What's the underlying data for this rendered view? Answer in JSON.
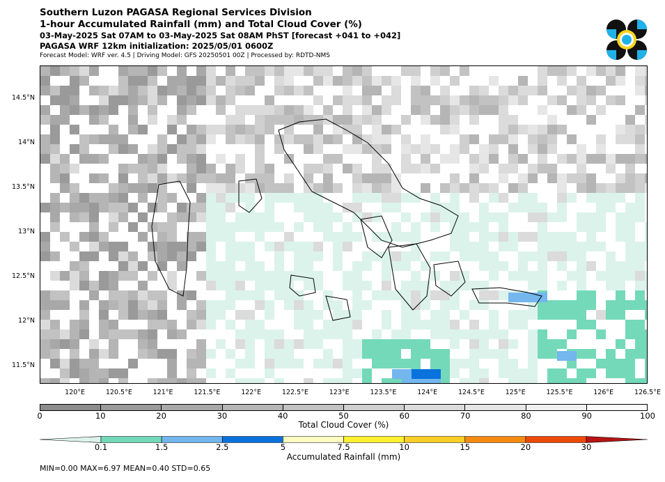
{
  "header": {
    "title1": "Southern Luzon PAGASA Regional Services Division",
    "title2": "1-hour Accumulated Rainfall (mm) and Total Cloud Cover (%)",
    "title3": "03-May-2025 Sat 07AM to 03-May-2025 Sat 08AM PhST [forecast +041 to +042]",
    "title4": "PAGASA WRF 12km initialization: 2025/05/01 0600Z",
    "title5": "Forecast Model: WRF ver. 4.5 | Driving Model: GFS 20250501 00Z | Processed by: RDTD-NMS"
  },
  "logo": {
    "icon": "pagasa-logo-icon",
    "colors": [
      "#111111",
      "#1fb2e8",
      "#f7d51d"
    ]
  },
  "map": {
    "lon_range": [
      119.6,
      126.5
    ],
    "lat_range": [
      11.3,
      14.87
    ],
    "lat_ticks": [
      {
        "v": 14.5,
        "label": "14.5°N"
      },
      {
        "v": 14.0,
        "label": "14°N"
      },
      {
        "v": 13.5,
        "label": "13.5°N"
      },
      {
        "v": 13.0,
        "label": "13°N"
      },
      {
        "v": 12.5,
        "label": "12.5°N"
      },
      {
        "v": 12.0,
        "label": "12°N"
      },
      {
        "v": 11.5,
        "label": "11.5°N"
      }
    ],
    "lon_ticks": [
      {
        "v": 120.0,
        "label": "120°E"
      },
      {
        "v": 120.5,
        "label": "120.5°E"
      },
      {
        "v": 121.0,
        "label": "121°E"
      },
      {
        "v": 121.5,
        "label": "121.5°E"
      },
      {
        "v": 122.0,
        "label": "122°E"
      },
      {
        "v": 122.5,
        "label": "122.5°E"
      },
      {
        "v": 123.0,
        "label": "123°E"
      },
      {
        "v": 123.5,
        "label": "123.5°E"
      },
      {
        "v": 124.0,
        "label": "124°E"
      },
      {
        "v": 124.5,
        "label": "124.5°E"
      },
      {
        "v": 125.0,
        "label": "125°E"
      },
      {
        "v": 125.5,
        "label": "125.5°E"
      },
      {
        "v": 126.0,
        "label": "126°E"
      },
      {
        "v": 126.5,
        "label": "126.5°E"
      }
    ]
  },
  "cloud_legend": {
    "label": "Total Cloud Cover (%)",
    "ticks": [
      "0",
      "10",
      "20",
      "30",
      "40",
      "50",
      "60",
      "70",
      "80",
      "90",
      "100"
    ],
    "colors": [
      "#8c8c8c",
      "#9a9a9a",
      "#a8a8a8",
      "#b5b5b5",
      "#c2c2c2",
      "#cfcfcf",
      "#dbdbdb",
      "#e6e6e6",
      "#f0f0f0",
      "#fafafa"
    ]
  },
  "rain_legend": {
    "label": "Accumulated Rainfall (mm)",
    "ticks": [
      "0.1",
      "1.5",
      "2.5",
      "5",
      "7.5",
      "10",
      "15",
      "20",
      "30"
    ],
    "colors": [
      "#dcf3ec",
      "#74d9b8",
      "#74b6ee",
      "#0a72dc",
      "#fffcc2",
      "#fff030",
      "#fbcf26",
      "#f58a11",
      "#ec4a06",
      "#b81414"
    ]
  },
  "stats": "MIN=0.00   MAX=6.97   MEAN=0.40   STD=0.65"
}
